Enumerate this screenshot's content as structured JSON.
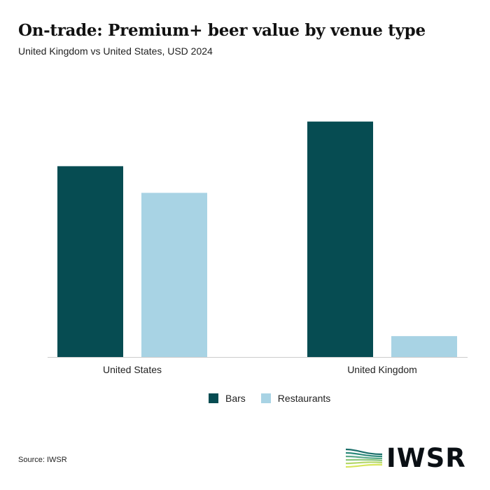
{
  "title": "On-trade: Premium+ beer value by venue type",
  "subtitle": "United Kingdom vs United States, USD 2024",
  "source": "Source: IWSR",
  "logo_text": "IWSR",
  "colors": {
    "bars": "#064c52",
    "restaurants": "#a8d3e4",
    "axis": "#cccccc"
  },
  "chart_data": {
    "type": "bar",
    "categories": [
      "United States",
      "United Kingdom"
    ],
    "series": [
      {
        "name": "Bars",
        "values": [
          265,
          327
        ]
      },
      {
        "name": "Restaurants",
        "values": [
          228,
          29
        ]
      }
    ],
    "title": "On-trade: Premium+ beer value by venue type",
    "subtitle": "United Kingdom vs United States, USD 2024",
    "xlabel": "",
    "ylabel": "",
    "ylim": [
      0,
      350
    ],
    "grid": false,
    "legend": "bottom-center"
  }
}
